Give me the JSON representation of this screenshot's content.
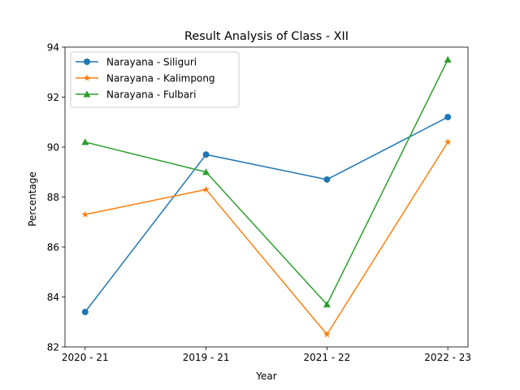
{
  "chart_data": {
    "type": "line",
    "title": "Result Analysis of Class - XII",
    "xlabel": "Year",
    "ylabel": "Percentage",
    "categories": [
      "2020 - 21",
      "2019 - 21",
      "2021 - 22",
      "2022 - 23"
    ],
    "ylim": [
      82,
      94
    ],
    "yticks": [
      82,
      84,
      86,
      88,
      90,
      92,
      94
    ],
    "grid": false,
    "legend_position": "top-left",
    "series": [
      {
        "name": "Narayana - Siliguri",
        "values": [
          83.4,
          89.7,
          88.7,
          91.2
        ],
        "color": "#1f77b4",
        "marker": "circle"
      },
      {
        "name": "Narayana - Kalimpong",
        "values": [
          87.3,
          88.3,
          82.5,
          90.2
        ],
        "color": "#ff7f0e",
        "marker": "star"
      },
      {
        "name": "Narayana - Fulbari",
        "values": [
          90.2,
          89.0,
          83.7,
          93.5
        ],
        "color": "#2ca02c",
        "marker": "triangle"
      }
    ]
  }
}
